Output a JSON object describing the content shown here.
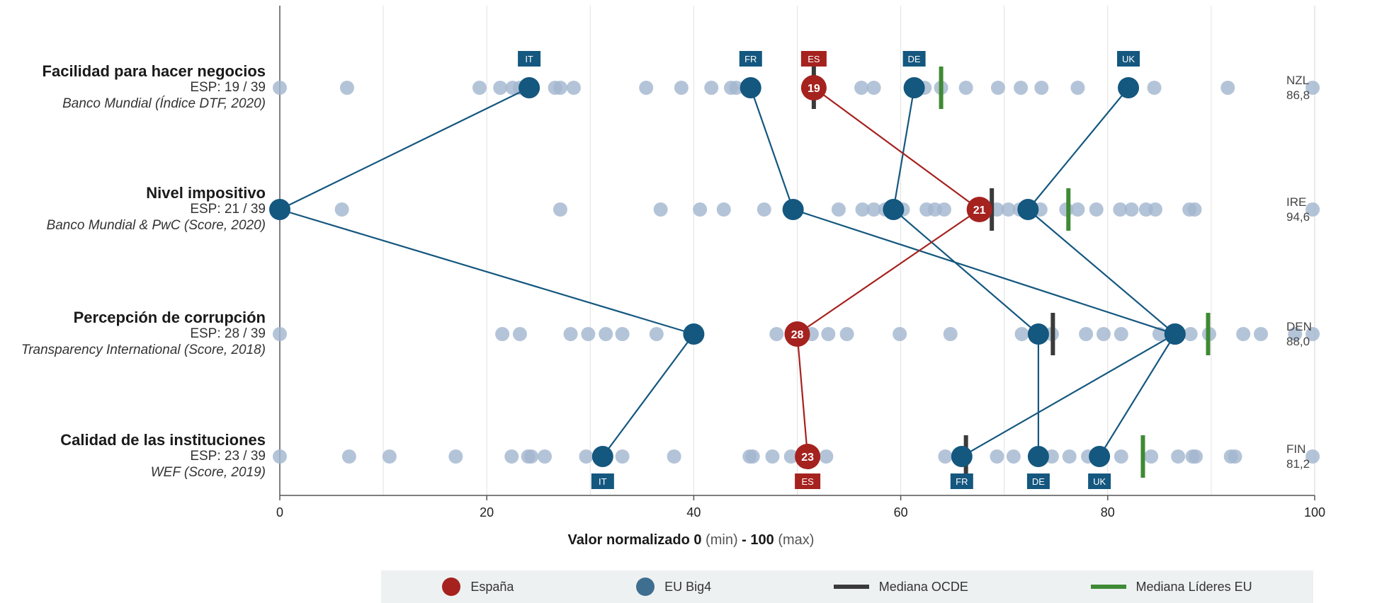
{
  "chart_data": {
    "type": "scatter",
    "x_axis": {
      "label_bold_1": "Valor normalizado 0",
      "label_min": " (min) ",
      "label_bold_2": "- 100",
      "label_max": " (max)",
      "range": [
        0,
        100
      ],
      "ticks": [
        0,
        20,
        40,
        60,
        80,
        100
      ],
      "grid": "vertical every 10"
    },
    "rows": [
      {
        "title": "Facilidad para hacer negocios",
        "rank": "ESP: 19 / 39",
        "source": "Banco Mundial (Índice DTF, 2020)",
        "leader_code": "NZL",
        "leader_value": "86,8",
        "countries": [
          0,
          6.5,
          19.3,
          21.3,
          22.5,
          23.2,
          26.6,
          27.1,
          28.4,
          35.4,
          38.8,
          41.7,
          43.6,
          44.1,
          45.0,
          56.2,
          57.4,
          61.0,
          62.3,
          63.9,
          66.3,
          69.4,
          71.6,
          73.6,
          77.1,
          84.5,
          91.6,
          99.8
        ],
        "big4": [
          {
            "code": "IT",
            "value": 24.1
          },
          {
            "code": "FR",
            "value": 45.5
          },
          {
            "code": "DE",
            "value": 61.3
          },
          {
            "code": "UK",
            "value": 82.0
          }
        ],
        "espana": {
          "code": "ES",
          "rank_label": "19",
          "value": 51.6
        },
        "median_ocde": 51.6,
        "median_leaders": 63.9
      },
      {
        "title": "Nivel impositivo",
        "rank": "ESP: 21 / 39",
        "source": "Banco Mundial & PwC (Score, 2020)",
        "leader_code": "IRE",
        "leader_value": "94,6",
        "countries": [
          6.0,
          27.1,
          36.8,
          40.6,
          42.9,
          46.8,
          54.0,
          56.3,
          57.4,
          58.5,
          60.2,
          62.5,
          63.3,
          64.2,
          69.3,
          70.4,
          71.5,
          73.5,
          76.0,
          77.1,
          78.9,
          81.2,
          82.3,
          83.7,
          84.6,
          87.9,
          88.4,
          99.8
        ],
        "big4": [
          {
            "code": "IT",
            "value": 0.0
          },
          {
            "code": "FR",
            "value": 49.6
          },
          {
            "code": "DE",
            "value": 59.3
          },
          {
            "code": "UK",
            "value": 72.3
          }
        ],
        "espana": {
          "code": "ES",
          "rank_label": "21",
          "value": 67.6
        },
        "median_ocde": 68.8,
        "median_leaders": 76.2
      },
      {
        "title": "Percepción de corrupción",
        "rank": "ESP: 28 / 39",
        "source": "Transparency International (Score, 2018)",
        "leader_code": "DEN",
        "leader_value": "88,0",
        "countries": [
          0,
          21.5,
          23.2,
          28.1,
          29.8,
          31.5,
          33.1,
          36.4,
          48.0,
          51.4,
          53.0,
          54.8,
          59.9,
          64.8,
          71.7,
          74.6,
          77.9,
          79.6,
          81.3,
          85.0,
          88.0,
          89.8,
          93.1,
          94.8,
          98.1,
          99.8
        ],
        "big4": [
          {
            "code": "IT",
            "value": 40.0
          },
          {
            "code": "DE",
            "value": 73.3
          },
          {
            "code": "UK",
            "value": 86.5
          },
          {
            "code": "FR",
            "value": 86.5
          }
        ],
        "espana": {
          "code": "ES",
          "rank_label": "28",
          "value": 50.0
        },
        "median_ocde": 74.7,
        "median_leaders": 89.7
      },
      {
        "title": "Calidad de las instituciones",
        "rank": "ESP: 23 / 39",
        "source": "WEF (Score, 2019)",
        "leader_code": "FIN",
        "leader_value": "81,2",
        "countries": [
          0,
          6.7,
          10.6,
          17.0,
          22.4,
          24.0,
          24.3,
          25.6,
          29.6,
          33.1,
          38.1,
          45.4,
          45.7,
          47.6,
          49.4,
          51.3,
          52.8,
          64.3,
          69.3,
          70.9,
          74.6,
          76.3,
          78.1,
          81.3,
          84.2,
          86.8,
          88.2,
          88.5,
          91.9,
          92.3,
          99.8
        ],
        "big4": [
          {
            "code": "IT",
            "value": 31.2
          },
          {
            "code": "FR",
            "value": 65.9
          },
          {
            "code": "DE",
            "value": 73.3
          },
          {
            "code": "UK",
            "value": 79.2
          }
        ],
        "espana": {
          "code": "ES",
          "rank_label": "23",
          "value": 51.0
        },
        "median_ocde": 66.3,
        "median_leaders": 83.4
      }
    ],
    "legend": {
      "position": "bottom",
      "items": [
        {
          "label": "España",
          "kind": "dot",
          "color": "#a5221f"
        },
        {
          "label": "EU Big4",
          "kind": "dot",
          "color": "#3f6f90"
        },
        {
          "label": "Mediana OCDE",
          "kind": "line",
          "color": "#3a3a3a"
        },
        {
          "label": "Mediana Líderes EU",
          "kind": "line",
          "color": "#3f8a35"
        }
      ]
    },
    "colors": {
      "espana": "#a5221f",
      "big4": "#14577f",
      "countries": "#a3b7cf",
      "median_ocde": "#3a3a3a",
      "median_leaders": "#3f8a35"
    }
  }
}
